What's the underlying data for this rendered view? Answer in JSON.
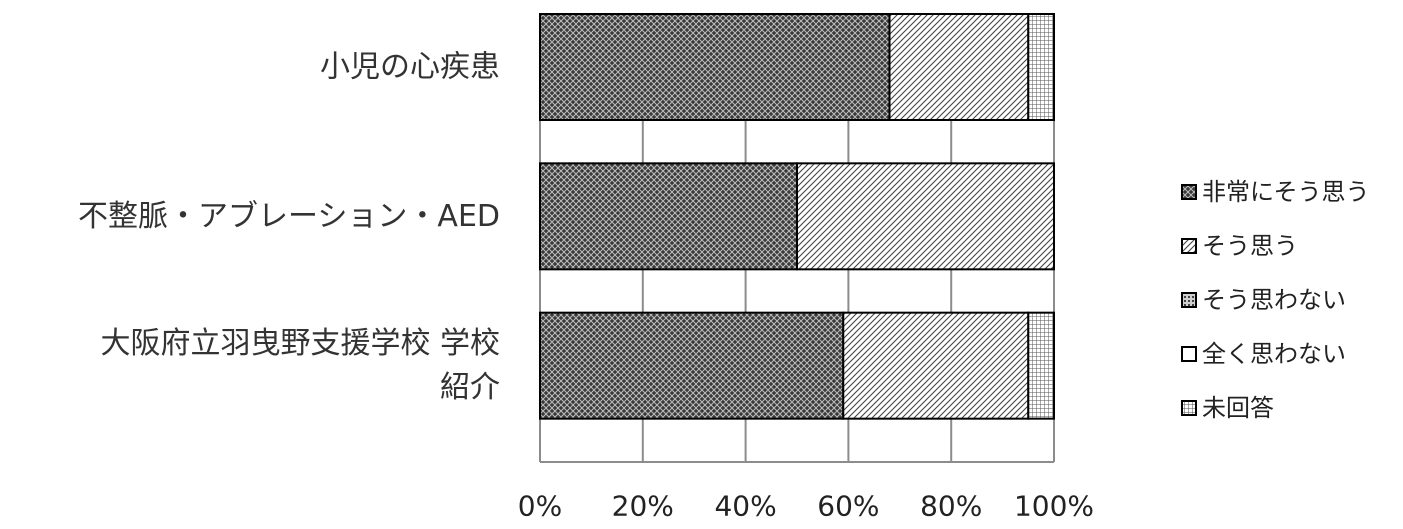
{
  "chart_data": {
    "type": "bar",
    "orientation": "horizontal",
    "stacked": "percent",
    "categories": [
      "小児の心疾患",
      "不整脈・アブレーション・AED",
      "大阪府立羽曳野支援学校 学校紹介"
    ],
    "category_label_lines": [
      [
        "小児の心疾患"
      ],
      [
        "不整脈・アブレーション・AED"
      ],
      [
        "大阪府立羽曳野支援学校 学校",
        "紹介"
      ]
    ],
    "series": [
      {
        "name": "非常にそう思う",
        "values": [
          68,
          50,
          59
        ],
        "pattern": "dense-cross"
      },
      {
        "name": "そう思う",
        "values": [
          27,
          50,
          36
        ],
        "pattern": "diagonal"
      },
      {
        "name": "そう思わない",
        "values": [
          0,
          0,
          0
        ],
        "pattern": "dots"
      },
      {
        "name": "全く思わない",
        "values": [
          0,
          0,
          0
        ],
        "pattern": "blank"
      },
      {
        "name": "未回答",
        "values": [
          5,
          0,
          5
        ],
        "pattern": "grid"
      }
    ],
    "xlim": [
      0,
      100
    ],
    "xticks": [
      "0%",
      "20%",
      "40%",
      "60%",
      "80%",
      "100%"
    ],
    "grid": true,
    "legend_position": "right",
    "title": "",
    "xlabel": "",
    "ylabel": ""
  }
}
